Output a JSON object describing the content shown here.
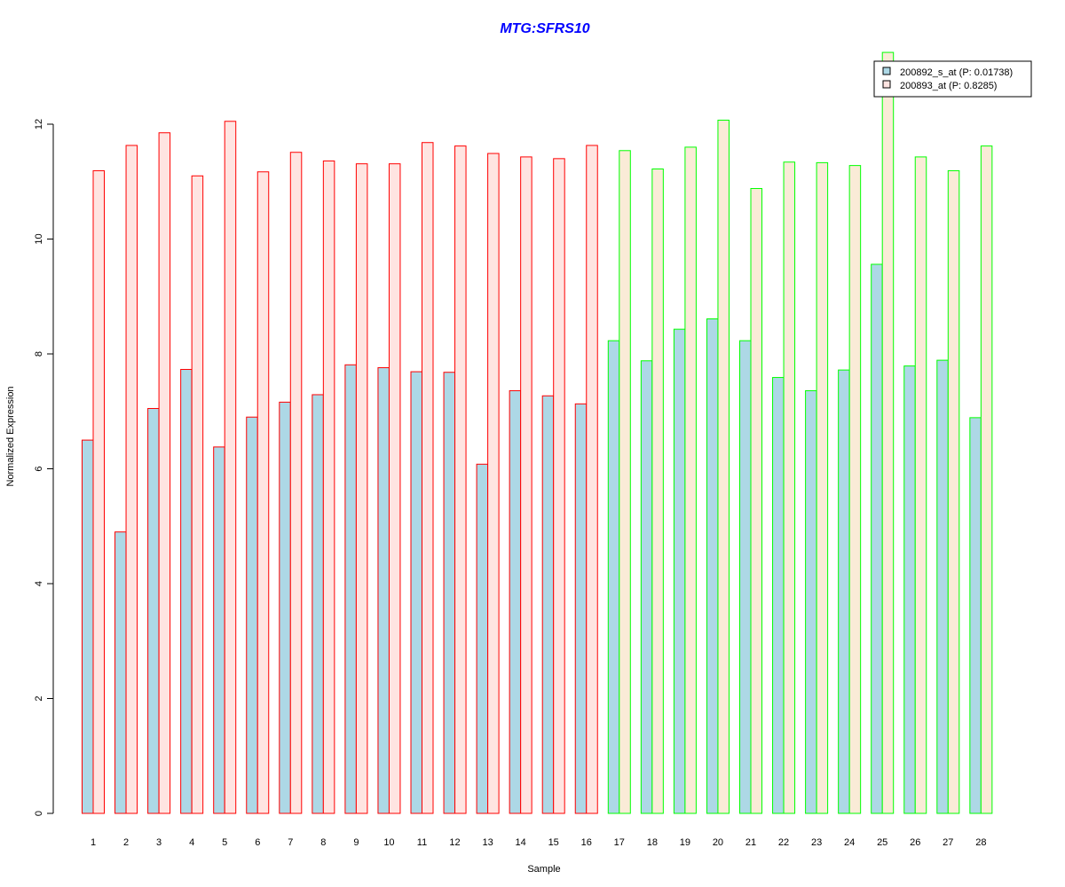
{
  "colors": {
    "title": "#0000ff",
    "series1_fill": "#add8e6",
    "series2_fill_group1": "#ffe4e1",
    "series2_fill_group2": "#faebd7",
    "group1_border": "#ff0000",
    "group2_border": "#00ff00",
    "axis": "#000000"
  },
  "chart_data": {
    "type": "bar",
    "title": "MTG:SFRS10",
    "xlabel": "Sample",
    "ylabel": "Normalized Expression",
    "ylim": [
      0,
      13.4
    ],
    "yticks": [
      0,
      2,
      4,
      6,
      8,
      10,
      12
    ],
    "grid": false,
    "legend_position": "top-right",
    "categories": [
      "1",
      "2",
      "3",
      "4",
      "5",
      "6",
      "7",
      "8",
      "9",
      "10",
      "11",
      "12",
      "13",
      "14",
      "15",
      "16",
      "17",
      "18",
      "19",
      "20",
      "21",
      "22",
      "23",
      "24",
      "25",
      "26",
      "27",
      "28"
    ],
    "group_sizes": [
      16,
      12
    ],
    "series": [
      {
        "name": "200892_s_at (P: 0.01738)",
        "values": [
          6.5,
          4.9,
          7.05,
          7.73,
          6.38,
          6.9,
          7.16,
          7.29,
          7.81,
          7.76,
          7.69,
          7.68,
          6.08,
          7.36,
          7.27,
          7.13,
          8.23,
          7.88,
          8.43,
          8.61,
          8.23,
          7.59,
          7.36,
          7.72,
          9.56,
          7.79,
          7.89,
          6.89
        ]
      },
      {
        "name": "200893_at (P: 0.8285)",
        "values": [
          11.19,
          11.63,
          11.85,
          11.1,
          12.05,
          11.17,
          11.51,
          11.36,
          11.31,
          11.31,
          11.68,
          11.62,
          11.49,
          11.43,
          11.4,
          11.63,
          11.54,
          11.22,
          11.6,
          12.07,
          10.88,
          11.34,
          11.33,
          11.28,
          13.25,
          11.43,
          11.19,
          11.62
        ]
      }
    ]
  }
}
